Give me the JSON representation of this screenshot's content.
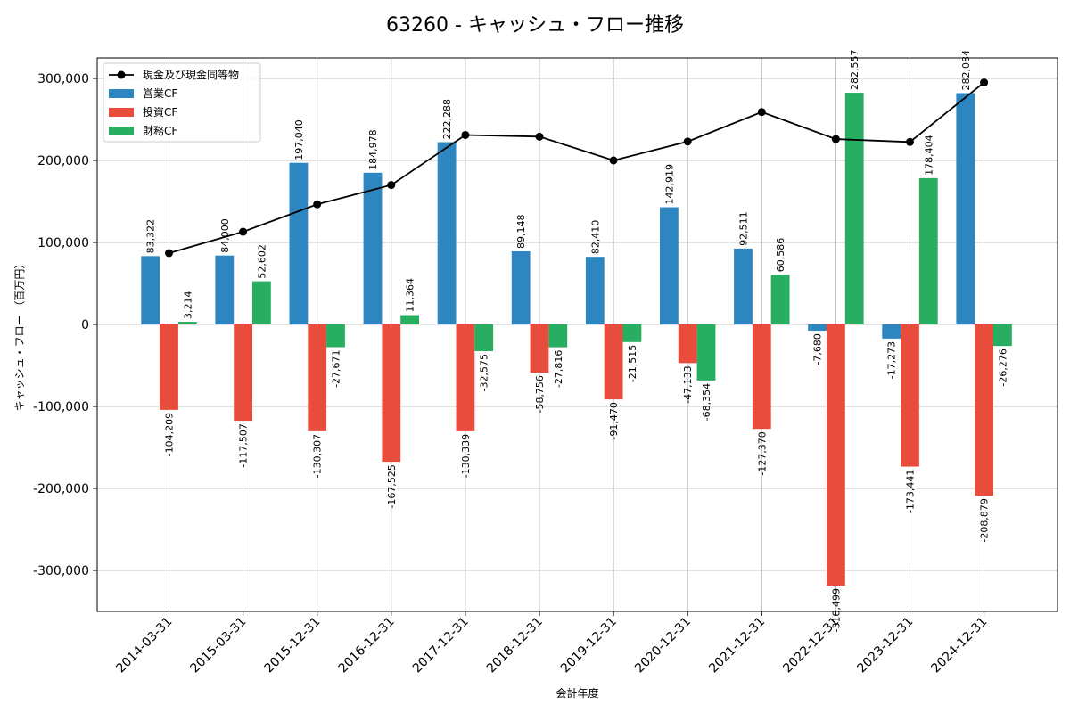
{
  "chart_data": {
    "type": "bar",
    "title": "63260 - キャッシュ・フロー推移",
    "xlabel": "会計年度",
    "ylabel": "キャッシュ・フロー （百万円）",
    "ylim": [
      -350000,
      325000
    ],
    "yticks": [
      -300000,
      -200000,
      -100000,
      0,
      100000,
      200000,
      300000
    ],
    "ytick_labels": [
      "-300,000",
      "-200,000",
      "-100,000",
      "0",
      "100,000",
      "200,000",
      "300,000"
    ],
    "grid": true,
    "legend_position": "top-left",
    "categories": [
      "2014-03-31",
      "2015-03-31",
      "2015-12-31",
      "2016-12-31",
      "2017-12-31",
      "2018-12-31",
      "2019-12-31",
      "2020-12-31",
      "2021-12-31",
      "2022-12-31",
      "2023-12-31",
      "2024-12-31"
    ],
    "series": [
      {
        "name": "営業CF",
        "kind": "bar",
        "color": "#2e86c1",
        "values": [
          83322,
          84000,
          197040,
          184978,
          222288,
          89148,
          82410,
          142919,
          92511,
          -7680,
          -17273,
          282084
        ],
        "labels": [
          "83,322",
          "84,000",
          "197,040",
          "184,978",
          "222,288",
          "89,148",
          "82,410",
          "142,919",
          "92,511",
          "-7,680",
          "-17,273",
          "282,084"
        ]
      },
      {
        "name": "投資CF",
        "kind": "bar",
        "color": "#e74c3c",
        "values": [
          -104209,
          -117507,
          -130307,
          -167525,
          -130339,
          -58756,
          -91470,
          -47133,
          -127370,
          -318499,
          -173441,
          -208879
        ],
        "labels": [
          "-104,209",
          "-117,507",
          "-130,307",
          "-167,525",
          "-130,339",
          "-58,756",
          "-91,470",
          "-47,133",
          "-127,370",
          "-318,499",
          "-173,441",
          "-208,879"
        ]
      },
      {
        "name": "財務CF",
        "kind": "bar",
        "color": "#27ae60",
        "values": [
          3214,
          52602,
          -27671,
          11364,
          -32575,
          -27816,
          -21515,
          -68354,
          60586,
          282557,
          178404,
          -26276
        ],
        "labels": [
          "3,214",
          "52,602",
          "-27,671",
          "11,364",
          "-32,575",
          "-27,816",
          "-21,515",
          "-68,354",
          "60,586",
          "282,557",
          "178,404",
          "-26,276"
        ]
      },
      {
        "name": "現金及び現金同等物",
        "kind": "line",
        "color": "#000000",
        "values": [
          87000,
          113000,
          146500,
          170000,
          231000,
          229000,
          200000,
          223000,
          259000,
          226000,
          222500,
          295000
        ]
      }
    ]
  }
}
